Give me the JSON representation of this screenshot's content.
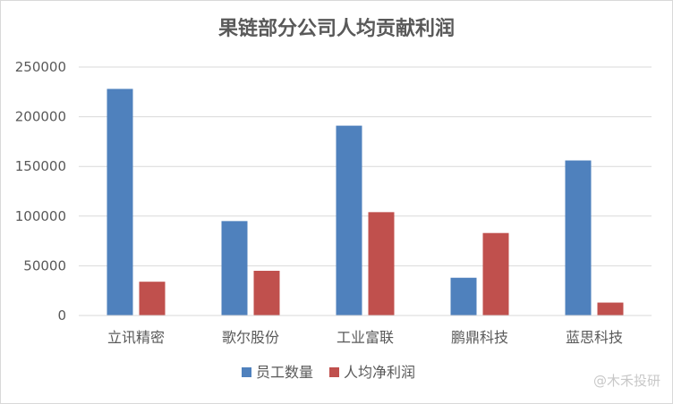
{
  "chart_data": {
    "type": "bar",
    "title": "果链部分公司人均贡献利润",
    "xlabel": "",
    "ylabel": "",
    "categories": [
      "立讯精密",
      "歌尔股份",
      "工业富联",
      "鹏鼎科技",
      "蓝思科技"
    ],
    "series": [
      {
        "name": "员工数量",
        "color": "#4F81BD",
        "values": [
          228000,
          95000,
          191000,
          38000,
          156000
        ]
      },
      {
        "name": "人均净利润",
        "color": "#C0504D",
        "values": [
          34000,
          45000,
          104000,
          83000,
          13000
        ]
      }
    ],
    "ylim": [
      0,
      250000
    ],
    "yticks": [
      0,
      50000,
      100000,
      150000,
      200000,
      250000
    ],
    "ytick_labels": [
      "0",
      "50000",
      "100000",
      "150000",
      "200000",
      "250000"
    ],
    "grid": true,
    "legend_position": "bottom"
  },
  "watermark": "@木禾投研"
}
